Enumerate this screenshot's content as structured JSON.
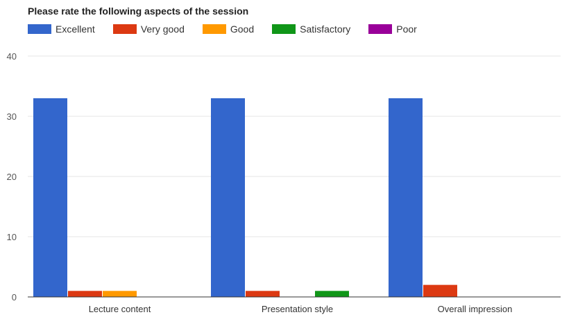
{
  "chart_data": {
    "type": "bar",
    "title": "Please rate the following aspects of the session",
    "categories": [
      "Lecture content",
      "Presentation style",
      "Overall impression"
    ],
    "series": [
      {
        "name": "Excellent",
        "color": "#3366cc",
        "values": [
          33,
          33,
          33
        ]
      },
      {
        "name": "Very good",
        "color": "#dc3912",
        "values": [
          1,
          1,
          2
        ]
      },
      {
        "name": "Good",
        "color": "#ff9900",
        "values": [
          1,
          0,
          0
        ]
      },
      {
        "name": "Satisfactory",
        "color": "#109618",
        "values": [
          0,
          1,
          0
        ]
      },
      {
        "name": "Poor",
        "color": "#990099",
        "values": [
          0,
          0,
          0
        ]
      }
    ],
    "ylim": [
      0,
      40
    ],
    "yticks": [
      "0",
      "10",
      "20",
      "30",
      "40"
    ],
    "grid": true,
    "legend": "top-left"
  }
}
